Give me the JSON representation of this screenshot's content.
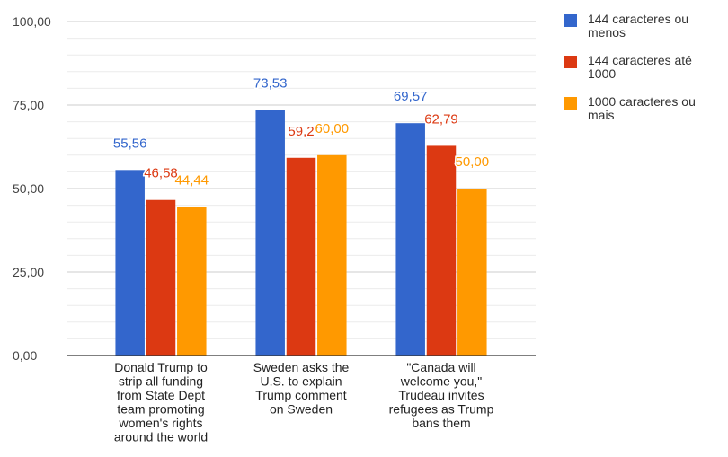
{
  "chart_data": {
    "type": "bar",
    "categories": [
      [
        "Donald Trump to",
        "strip all funding",
        "from State Dept",
        "team promoting",
        "women's rights",
        "around the world"
      ],
      [
        "Sweden asks the",
        "U.S. to explain",
        "Trump comment",
        "on Sweden"
      ],
      [
        "\"Canada will",
        "welcome you,\"",
        "Trudeau invites",
        "refugees as Trump",
        "bans them"
      ]
    ],
    "series": [
      {
        "name": "144 caracteres ou menos",
        "legend_lines": [
          "144 caracteres ou",
          "menos"
        ],
        "color": "#3366cc",
        "values": [
          55.56,
          73.53,
          69.57
        ],
        "labels": [
          "55,56",
          "73,53",
          "69,57"
        ]
      },
      {
        "name": "144 caracteres até 1000",
        "legend_lines": [
          "144 caracteres até",
          "1000"
        ],
        "color": "#dc3912",
        "values": [
          46.58,
          59.2,
          62.79
        ],
        "labels": [
          "46,58",
          "59,2",
          "62,79"
        ]
      },
      {
        "name": "1000 caracteres ou mais",
        "legend_lines": [
          "1000 caracteres ou",
          "mais"
        ],
        "color": "#ff9900",
        "values": [
          44.44,
          60.0,
          50.0
        ],
        "labels": [
          "44,44",
          "60,00",
          "50,00"
        ]
      }
    ],
    "ylim": [
      0,
      100
    ],
    "yticks": [
      0,
      25,
      50,
      75,
      100
    ],
    "ytick_labels": [
      "0,00",
      "25,00",
      "50,00",
      "75,00",
      "100,00"
    ],
    "minor_grid": true,
    "legend_position": "right"
  }
}
